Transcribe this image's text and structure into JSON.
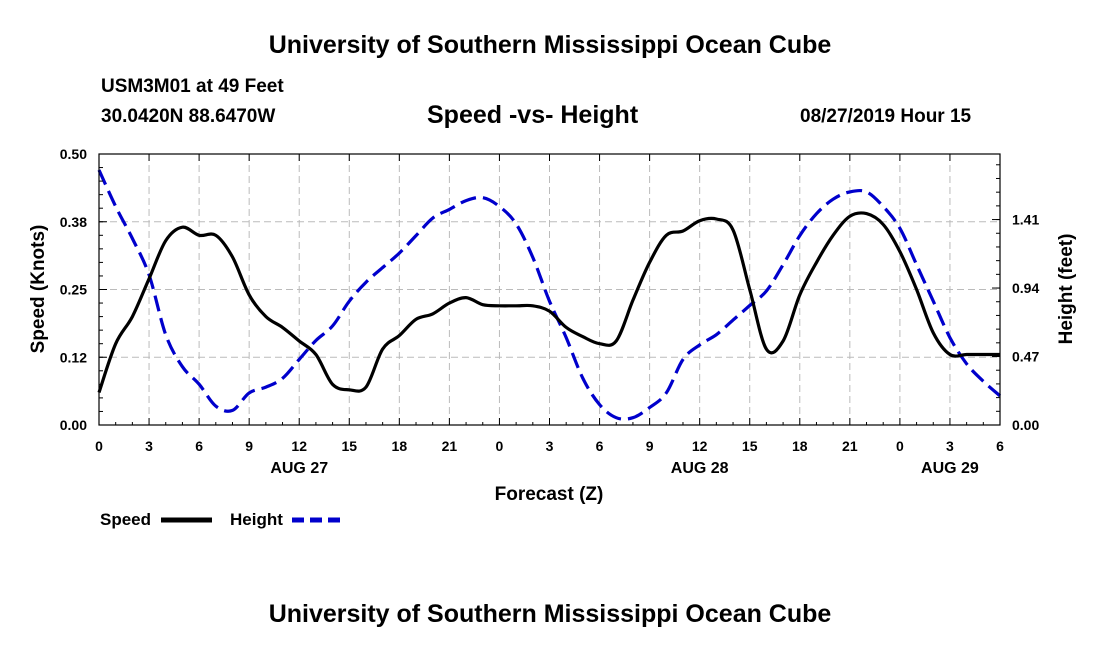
{
  "header": {
    "title": "University of Southern Mississippi Ocean Cube",
    "station": "USM3M01 at 49 Feet",
    "coords": "30.0420N 88.6470W",
    "chart_title": "Speed -vs- Height",
    "valid_time": "08/27/2019 Hour 15"
  },
  "footer": {
    "title": "University of Southern Mississippi Ocean Cube"
  },
  "colors": {
    "speed": "#000000",
    "height": "#0000cc",
    "grid": "#bbbbbb"
  },
  "chart_data": {
    "type": "line",
    "title": "Speed -vs- Height",
    "xlabel": "Forecast (Z)",
    "ylabel": "Speed (Knots)",
    "y2label": "Height (feet)",
    "xlim": [
      0,
      54
    ],
    "ylim": [
      0,
      0.5
    ],
    "y2lim": [
      0,
      1.86
    ],
    "x_ticks": [
      0,
      3,
      6,
      9,
      12,
      15,
      18,
      21,
      24,
      27,
      30,
      33,
      36,
      39,
      42,
      45,
      48,
      51,
      54
    ],
    "x_tick_labels": [
      "0",
      "3",
      "6",
      "9",
      "12",
      "15",
      "18",
      "21",
      "0",
      "3",
      "6",
      "9",
      "12",
      "15",
      "18",
      "21",
      "0",
      "3",
      "6"
    ],
    "date_labels": [
      {
        "x": 12,
        "label": "AUG 27"
      },
      {
        "x": 36,
        "label": "AUG 28"
      },
      {
        "x": 51,
        "label": "AUG 29"
      }
    ],
    "y_ticks": [
      0,
      0.125,
      0.25,
      0.375,
      0.5
    ],
    "y_tick_labels": [
      "0.00",
      "0.12",
      "0.25",
      "0.38",
      "0.50"
    ],
    "y2_ticks": [
      0,
      0.47,
      0.94,
      1.41
    ],
    "y2_tick_labels": [
      "0.00",
      "0.47",
      "0.94",
      "1.41"
    ],
    "series": [
      {
        "name": "Speed",
        "axis": "left",
        "style": "solid",
        "x": [
          0,
          1,
          2,
          3,
          4,
          5,
          6,
          7,
          8,
          9,
          10,
          11,
          12,
          13,
          14,
          15,
          16,
          17,
          18,
          19,
          20,
          21,
          22,
          23,
          24,
          25,
          26,
          27,
          28,
          29,
          30,
          31,
          32,
          33,
          34,
          35,
          36,
          37,
          38,
          39,
          40,
          41,
          42,
          43,
          44,
          45,
          46,
          47,
          48,
          49,
          50,
          51,
          52,
          53,
          54
        ],
        "values": [
          0.06,
          0.15,
          0.2,
          0.27,
          0.34,
          0.365,
          0.35,
          0.35,
          0.31,
          0.24,
          0.2,
          0.18,
          0.155,
          0.13,
          0.075,
          0.065,
          0.07,
          0.14,
          0.165,
          0.195,
          0.205,
          0.225,
          0.235,
          0.222,
          0.22,
          0.22,
          0.22,
          0.21,
          0.18,
          0.163,
          0.15,
          0.155,
          0.23,
          0.3,
          0.35,
          0.358,
          0.377,
          0.38,
          0.36,
          0.25,
          0.14,
          0.155,
          0.24,
          0.3,
          0.35,
          0.385,
          0.39,
          0.37,
          0.32,
          0.25,
          0.17,
          0.13,
          0.13,
          0.13,
          0.13
        ]
      },
      {
        "name": "Height",
        "axis": "right",
        "style": "dashed",
        "x": [
          0,
          1,
          2,
          3,
          4,
          5,
          6,
          7,
          8,
          9,
          10,
          11,
          12,
          13,
          14,
          15,
          16,
          17,
          18,
          19,
          20,
          21,
          22,
          23,
          24,
          25,
          26,
          27,
          28,
          29,
          30,
          31,
          32,
          33,
          34,
          35,
          36,
          37,
          38,
          39,
          40,
          41,
          42,
          43,
          44,
          45,
          46,
          47,
          48,
          49,
          50,
          51,
          52,
          53,
          54
        ],
        "values": [
          1.75,
          1.5,
          1.28,
          1.03,
          0.62,
          0.4,
          0.28,
          0.13,
          0.1,
          0.22,
          0.26,
          0.32,
          0.45,
          0.58,
          0.68,
          0.85,
          0.98,
          1.08,
          1.18,
          1.3,
          1.42,
          1.48,
          1.54,
          1.56,
          1.5,
          1.38,
          1.15,
          0.85,
          0.6,
          0.32,
          0.14,
          0.05,
          0.05,
          0.12,
          0.22,
          0.45,
          0.55,
          0.62,
          0.72,
          0.82,
          0.92,
          1.1,
          1.3,
          1.45,
          1.55,
          1.6,
          1.6,
          1.5,
          1.35,
          1.1,
          0.85,
          0.6,
          0.42,
          0.3,
          0.2
        ]
      }
    ],
    "legend": [
      {
        "label": "Speed",
        "style": "solid"
      },
      {
        "label": "Height",
        "style": "dashed"
      }
    ],
    "legend_position": "bottom-left",
    "grid": true
  }
}
